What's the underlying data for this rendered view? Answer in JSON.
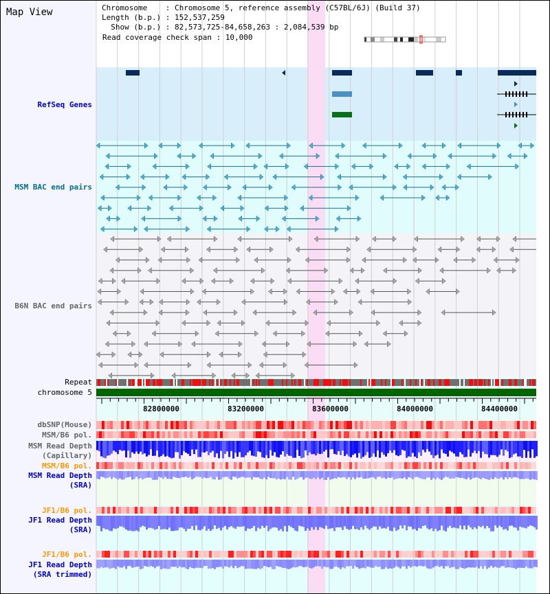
{
  "title": "Map View",
  "info": {
    "chromosome_label": "Chromosome    : ",
    "chromosome": "Chromosome 5, reference assembly (C57BL/6J) (Build 37)",
    "length_label": "Length (b.p.) : ",
    "length": "152,537,259",
    "show_label": "  Show (b.p.) : ",
    "show": "82,573,725-84,658,263 : 2,084,539 bp",
    "span_label": "Read coverage check span : ",
    "span": "10,000"
  },
  "tracks": {
    "refseq": "RefSeq Genes",
    "msm_bac": "MSM BAC end pairs",
    "b6n_bac": "B6N BAC end pairs",
    "repeat": "Repeat",
    "chromosome": "chromosome 5",
    "dbsnp": "dbSNP(Mouse)",
    "msm_pol1": "MSM/B6 pol.",
    "msm_depth_cap_1": "MSM Read Depth",
    "msm_depth_cap_2": "(Capillary)",
    "msm_pol2": "MSM/B6 pol.",
    "msm_depth_sra_1": "MSM Read Depth",
    "msm_depth_sra_2": "(SRA)",
    "jf1_pol1": "JF1/B6 pol.",
    "jf1_depth_1": "JF1 Read Depth",
    "jf1_depth_2": "(SRA)",
    "jf1_pol2": "JF1/B6 pol.",
    "jf1_trim_1": "JF1 Read Depth",
    "jf1_trim_2": "(SRA trimmed)"
  },
  "axis": {
    "ticks": [
      "82800000",
      "83200000",
      "83600000",
      "84000000",
      "84400000"
    ]
  },
  "colors": {
    "highlight": "#fadcf5",
    "refseq_bg": "#d8eefa",
    "msm_bg": "#e0fcfc",
    "b6n_bg": "#f4f4f8",
    "chrom": "#006400"
  }
}
